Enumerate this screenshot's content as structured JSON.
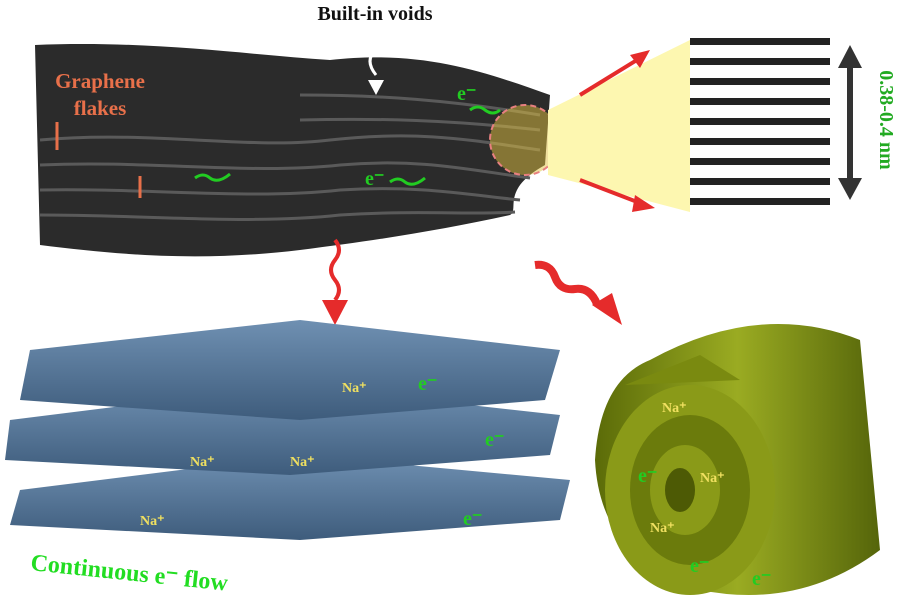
{
  "labels": {
    "voids": "Built-in voids",
    "graphene_line1": "Graphene",
    "graphene_line2": "flakes",
    "spacing": "0.38-0.4 nm",
    "flow": "Continuous e⁻ flow",
    "electron": "e⁻",
    "sodium": "Na⁺"
  },
  "colors": {
    "graphene": "#2b2b2b",
    "sheet": "#4f6f8f",
    "roll": "#7a8a10",
    "electron_text": "#22cc22",
    "sodium_text": "#f0e060",
    "red_arrow": "#e52b2b",
    "flake_label": "#e8704a",
    "zoom_cone": "#fdf7b0"
  }
}
